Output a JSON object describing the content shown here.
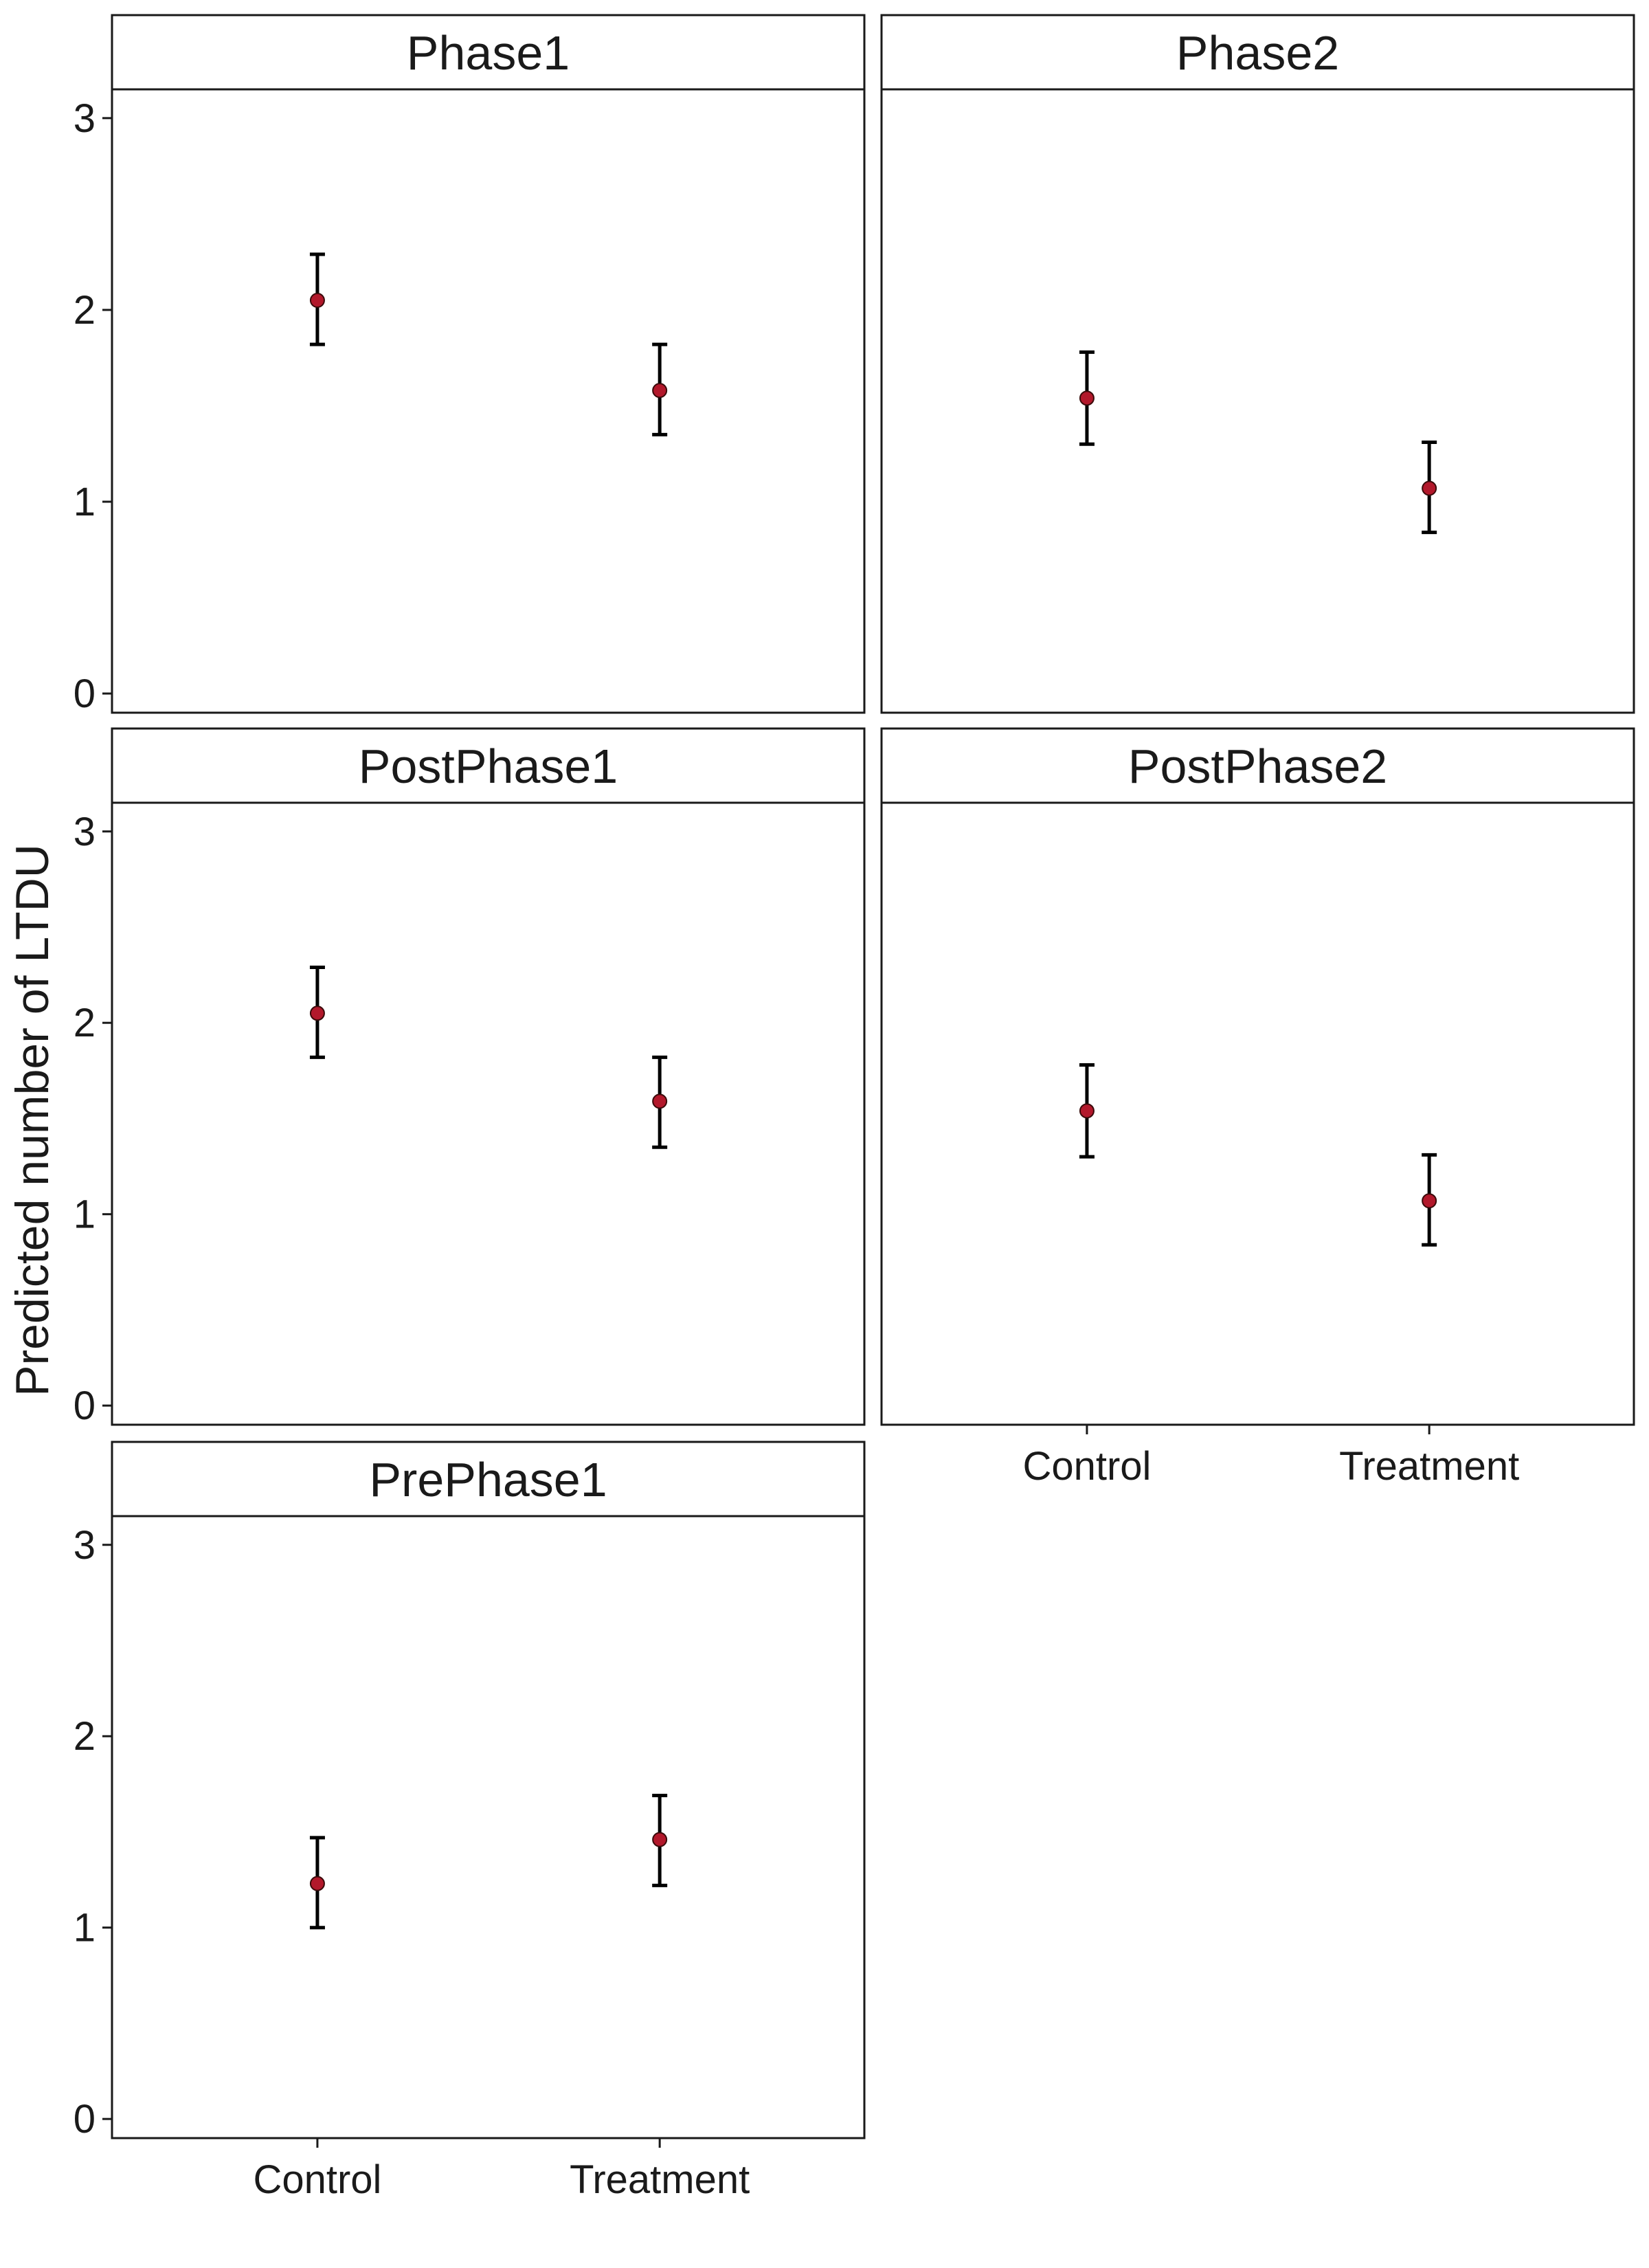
{
  "chart_data": {
    "type": "scatter",
    "ylabel": "Predicted number of LTDU",
    "xlabel": "",
    "categories": [
      "Control",
      "Treatment"
    ],
    "ylim": [
      -0.1,
      3.15
    ],
    "yticks": [
      0,
      1,
      2,
      3
    ],
    "grid": false,
    "point_color": "#b2182b",
    "errorbar_color": "#000000",
    "facets": [
      {
        "name": "Phase1",
        "points": [
          {
            "x": "Control",
            "y": 2.05,
            "ymin": 1.82,
            "ymax": 2.29
          },
          {
            "x": "Treatment",
            "y": 1.58,
            "ymin": 1.35,
            "ymax": 1.82
          }
        ]
      },
      {
        "name": "Phase2",
        "points": [
          {
            "x": "Control",
            "y": 1.54,
            "ymin": 1.3,
            "ymax": 1.78
          },
          {
            "x": "Treatment",
            "y": 1.07,
            "ymin": 0.84,
            "ymax": 1.31
          }
        ]
      },
      {
        "name": "PostPhase1",
        "points": [
          {
            "x": "Control",
            "y": 2.05,
            "ymin": 1.82,
            "ymax": 2.29
          },
          {
            "x": "Treatment",
            "y": 1.59,
            "ymin": 1.35,
            "ymax": 1.82
          }
        ]
      },
      {
        "name": "PostPhase2",
        "points": [
          {
            "x": "Control",
            "y": 1.54,
            "ymin": 1.3,
            "ymax": 1.78
          },
          {
            "x": "Treatment",
            "y": 1.07,
            "ymin": 0.84,
            "ymax": 1.31
          }
        ]
      },
      {
        "name": "PrePhase1",
        "points": [
          {
            "x": "Control",
            "y": 1.23,
            "ymin": 1.0,
            "ymax": 1.47
          },
          {
            "x": "Treatment",
            "y": 1.46,
            "ymin": 1.22,
            "ymax": 1.69
          }
        ]
      }
    ]
  }
}
